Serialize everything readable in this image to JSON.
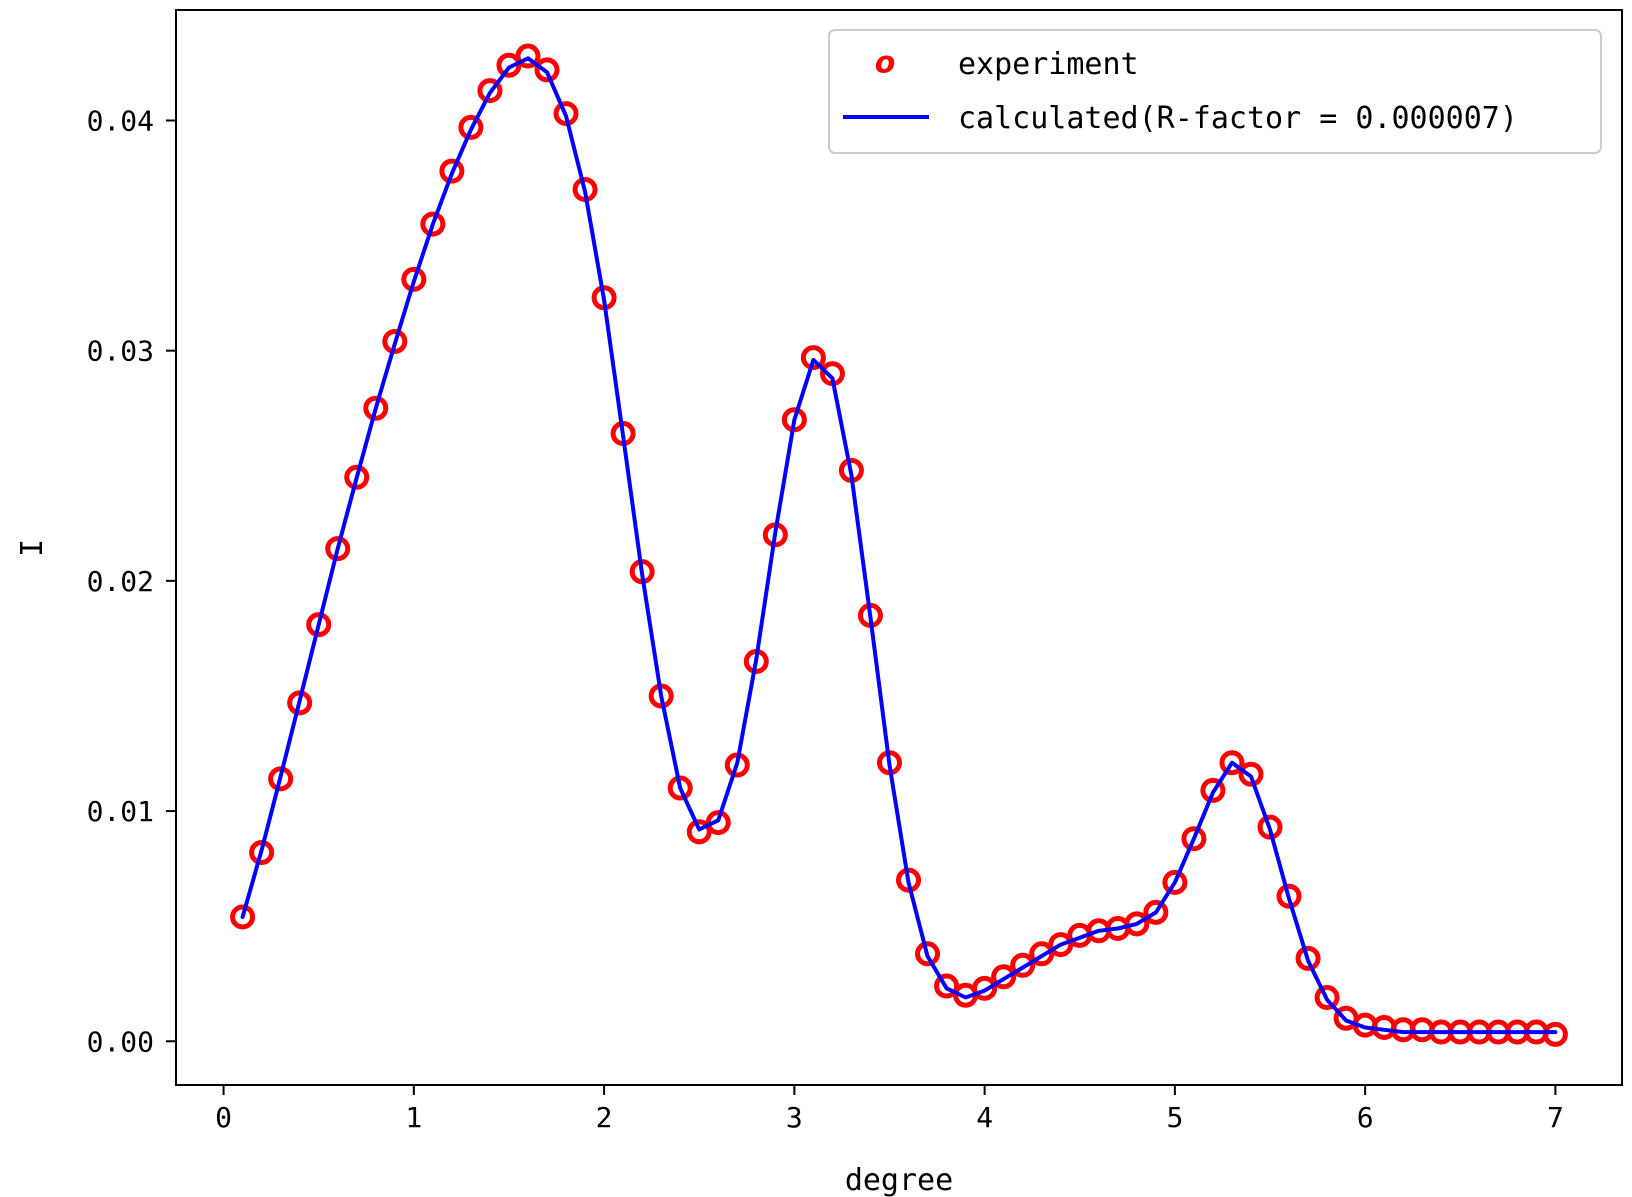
{
  "chart_data": {
    "type": "scatter",
    "title": "",
    "xlabel": "degree",
    "ylabel": "I",
    "xlim": [
      -0.25,
      7.35
    ],
    "ylim": [
      -0.0019,
      0.0448
    ],
    "xticks": [
      0,
      1,
      2,
      3,
      4,
      5,
      6,
      7
    ],
    "xtick_labels": [
      "0",
      "1",
      "2",
      "3",
      "4",
      "5",
      "6",
      "7"
    ],
    "yticks": [
      0.0,
      0.01,
      0.02,
      0.03,
      0.04
    ],
    "ytick_labels": [
      "0.00",
      "0.01",
      "0.02",
      "0.03",
      "0.04"
    ],
    "grid": false,
    "legend_position": "top-right",
    "series": [
      {
        "name": "experiment",
        "legend_marker": "o",
        "style": "markers",
        "color": "#ff0000",
        "x": [
          0.1,
          0.2,
          0.3,
          0.4,
          0.5,
          0.6,
          0.7,
          0.8,
          0.9,
          1.0,
          1.1,
          1.2,
          1.3,
          1.4,
          1.5,
          1.6,
          1.7,
          1.8,
          1.9,
          2.0,
          2.1,
          2.2,
          2.3,
          2.4,
          2.5,
          2.6,
          2.7,
          2.8,
          2.9,
          3.0,
          3.1,
          3.2,
          3.3,
          3.4,
          3.5,
          3.6,
          3.7,
          3.8,
          3.9,
          4.0,
          4.1,
          4.2,
          4.3,
          4.4,
          4.5,
          4.6,
          4.7,
          4.8,
          4.9,
          5.0,
          5.1,
          5.2,
          5.3,
          5.4,
          5.5,
          5.6,
          5.7,
          5.8,
          5.9,
          6.0,
          6.1,
          6.2,
          6.3,
          6.4,
          6.5,
          6.6,
          6.7,
          6.8,
          6.9,
          7.0
        ],
        "y": [
          0.0054,
          0.0082,
          0.0114,
          0.0147,
          0.0181,
          0.0214,
          0.0245,
          0.0275,
          0.0304,
          0.0331,
          0.0355,
          0.0378,
          0.0397,
          0.0413,
          0.0424,
          0.0428,
          0.0422,
          0.0403,
          0.037,
          0.0323,
          0.0264,
          0.0204,
          0.015,
          0.011,
          0.0091,
          0.0095,
          0.012,
          0.0165,
          0.022,
          0.027,
          0.0297,
          0.029,
          0.0248,
          0.0185,
          0.0121,
          0.007,
          0.0038,
          0.0024,
          0.002,
          0.0023,
          0.0028,
          0.0033,
          0.0038,
          0.0042,
          0.0046,
          0.0048,
          0.0049,
          0.0051,
          0.0056,
          0.0069,
          0.0088,
          0.0109,
          0.0121,
          0.0116,
          0.0093,
          0.0063,
          0.0036,
          0.0019,
          0.001,
          0.0007,
          0.0006,
          0.0005,
          0.0005,
          0.0004,
          0.0004,
          0.0004,
          0.0004,
          0.0004,
          0.0004,
          0.0003
        ]
      },
      {
        "name": "calculated(R-factor = 0.000007)",
        "style": "line",
        "color": "#0000ff",
        "x": [
          0.1,
          0.2,
          0.3,
          0.4,
          0.5,
          0.6,
          0.7,
          0.8,
          0.9,
          1.0,
          1.1,
          1.2,
          1.3,
          1.4,
          1.5,
          1.6,
          1.7,
          1.8,
          1.9,
          2.0,
          2.1,
          2.2,
          2.3,
          2.4,
          2.5,
          2.6,
          2.7,
          2.8,
          2.9,
          3.0,
          3.1,
          3.2,
          3.3,
          3.4,
          3.5,
          3.6,
          3.7,
          3.8,
          3.9,
          4.0,
          4.1,
          4.2,
          4.3,
          4.4,
          4.5,
          4.6,
          4.7,
          4.8,
          4.9,
          5.0,
          5.1,
          5.2,
          5.3,
          5.4,
          5.5,
          5.6,
          5.7,
          5.8,
          5.9,
          6.0,
          6.1,
          6.2,
          6.3,
          6.4,
          6.5,
          6.6,
          6.7,
          6.8,
          6.9,
          7.0
        ],
        "y": [
          0.0054,
          0.0083,
          0.0115,
          0.0148,
          0.0181,
          0.0214,
          0.0245,
          0.0275,
          0.0303,
          0.033,
          0.0355,
          0.0377,
          0.0396,
          0.0412,
          0.0423,
          0.0427,
          0.0421,
          0.0402,
          0.0369,
          0.0322,
          0.0263,
          0.0203,
          0.015,
          0.011,
          0.0092,
          0.0096,
          0.0121,
          0.0166,
          0.0221,
          0.027,
          0.0296,
          0.0288,
          0.0246,
          0.0184,
          0.012,
          0.0069,
          0.0037,
          0.0023,
          0.0019,
          0.0022,
          0.0027,
          0.0032,
          0.0037,
          0.0042,
          0.0045,
          0.0048,
          0.0049,
          0.0051,
          0.0056,
          0.0069,
          0.0088,
          0.0108,
          0.0121,
          0.0115,
          0.0092,
          0.0062,
          0.0035,
          0.0018,
          0.0009,
          0.0006,
          0.0005,
          0.0004,
          0.0004,
          0.0004,
          0.0004,
          0.0004,
          0.0004,
          0.0004,
          0.0004,
          0.0004
        ]
      }
    ]
  }
}
